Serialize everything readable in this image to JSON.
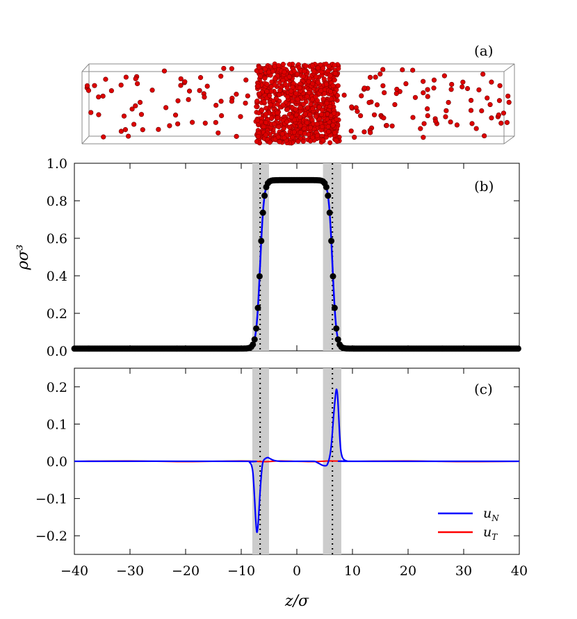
{
  "panel_labels": {
    "a": "(a)",
    "b": "(b)",
    "c": "(c)"
  },
  "colors": {
    "uN": "#0000ff",
    "uT": "#ff0000",
    "particle": "#dd0000",
    "shade": "#cccccc",
    "points": "#000000"
  },
  "chart_data": [
    {
      "type": "scatter",
      "panel": "(a)",
      "description_type": "particle snapshot",
      "slab_range": [
        -8,
        8
      ],
      "vapor_density_rho_sigma3": 0.01
    },
    {
      "type": "line",
      "panel": "(b)",
      "ylabel": "ρσ³",
      "xlim": [
        -40,
        40
      ],
      "ylim": [
        0.0,
        1.0
      ],
      "xticks": [
        -40,
        -30,
        -20,
        -10,
        0,
        10,
        20,
        30,
        40
      ],
      "yticks": [
        "0.0",
        "0.2",
        "0.4",
        "0.6",
        "0.8",
        "1.0"
      ],
      "grid": false,
      "shaded_regions": [
        [
          -8,
          -5
        ],
        [
          4.7,
          8
        ]
      ],
      "dotted_lines": [
        -6.6,
        6.4
      ],
      "profile": {
        "rho_liquid": 0.91,
        "rho_vapor": 0.012,
        "left_interface": -6.6,
        "right_interface": 6.4,
        "width": 0.7
      },
      "points": {
        "x": [
          -8,
          -7.6,
          -7.3,
          -7,
          -6.7,
          -6.4,
          -6.1,
          -5.8,
          -5.5,
          -5.2,
          -4.9,
          -4.6,
          -4.3,
          -4,
          -3,
          -2,
          -1,
          0,
          1,
          2,
          3,
          4,
          4.3,
          4.6,
          4.9,
          5.2,
          5.5,
          5.8,
          6.1,
          6.4,
          6.7,
          7,
          7.3,
          7.6,
          8
        ],
        "y": [
          0.02,
          0.05,
          0.1,
          0.22,
          0.36,
          0.52,
          0.66,
          0.78,
          0.85,
          0.88,
          0.9,
          0.905,
          0.91,
          0.91,
          0.91,
          0.91,
          0.91,
          0.91,
          0.91,
          0.91,
          0.91,
          0.91,
          0.905,
          0.9,
          0.89,
          0.87,
          0.82,
          0.74,
          0.62,
          0.46,
          0.3,
          0.16,
          0.08,
          0.04,
          0.015
        ]
      }
    },
    {
      "type": "line",
      "panel": "(c)",
      "xlabel": "z/σ",
      "xlim": [
        -40,
        40
      ],
      "ylim": [
        -0.25,
        0.25
      ],
      "xticks": [
        "−40",
        "−30",
        "−20",
        "−10",
        "0",
        "10",
        "20",
        "30",
        "40"
      ],
      "yticks": [
        "−0.2",
        "−0.1",
        "0.0",
        "0.1",
        "0.2"
      ],
      "grid": false,
      "shaded_regions": [
        [
          -8,
          -5
        ],
        [
          4.7,
          8
        ]
      ],
      "dotted_lines": [
        -6.6,
        6.4
      ],
      "legend_position": "bottom-right",
      "series": [
        {
          "name": "u_N",
          "label_main": "u",
          "label_sub": "N",
          "x": [
            -40,
            -10,
            -8.5,
            -8,
            -7.8,
            -7.6,
            -7.4,
            -7.2,
            -7.0,
            -6.8,
            -6.6,
            -6.4,
            -6.2,
            -6.0,
            -5.6,
            -5.2,
            -4.8,
            -4.4,
            -4.0,
            -3,
            0,
            3,
            3.5,
            4,
            4.5,
            5,
            5.5,
            6,
            6.3,
            6.6,
            6.9,
            7.1,
            7.3,
            7.5,
            7.7,
            7.9,
            8.2,
            8.6,
            9,
            10,
            40
          ],
          "y": [
            0,
            0,
            -0.003,
            -0.02,
            -0.05,
            -0.1,
            -0.155,
            -0.19,
            -0.175,
            -0.13,
            -0.08,
            -0.04,
            -0.01,
            0.002,
            0.008,
            0.01,
            0.007,
            0.004,
            0.002,
            0,
            0,
            0,
            -0.002,
            -0.006,
            -0.01,
            -0.012,
            -0.008,
            0.02,
            0.06,
            0.12,
            0.17,
            0.193,
            0.18,
            0.13,
            0.07,
            0.03,
            0.01,
            0.003,
            0.001,
            0,
            0
          ]
        },
        {
          "name": "u_T",
          "label_main": "u",
          "label_sub": "T",
          "x": [
            -40,
            -30,
            -20,
            -10,
            -6,
            -3,
            0,
            3,
            6,
            10,
            20,
            30,
            40
          ],
          "y": [
            0,
            0.001,
            -0.001,
            0.001,
            -0.001,
            0.001,
            0,
            -0.001,
            0.001,
            0,
            0.001,
            -0.001,
            0
          ]
        }
      ]
    }
  ]
}
